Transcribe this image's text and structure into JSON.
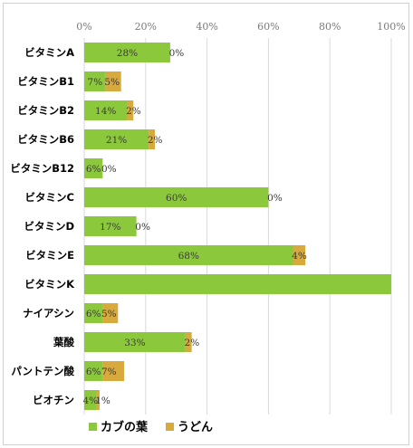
{
  "chart_data": {
    "type": "bar",
    "orientation": "horizontal",
    "stacked": true,
    "categories": [
      "ビタミンA",
      "ビタミンB1",
      "ビタミンB2",
      "ビタミンB6",
      "ビタミンB12",
      "ビタミンC",
      "ビタミンD",
      "ビタミンE",
      "ビタミンK",
      "ナイアシン",
      "葉酸",
      "パントテン酸",
      "ビオチン"
    ],
    "series": [
      {
        "name": "カブの葉",
        "color": "#8cc83c",
        "values": [
          28,
          7,
          14,
          21,
          6,
          60,
          17,
          68,
          100,
          6,
          33,
          6,
          4
        ],
        "labels": [
          "28%",
          "7%",
          "14%",
          "21%",
          "6%",
          "60%",
          "17%",
          "68%",
          "",
          "6%",
          "33%",
          "6%",
          "4%"
        ]
      },
      {
        "name": "うどん",
        "color": "#d8a93c",
        "values": [
          0,
          5,
          2,
          2,
          0,
          0,
          0,
          4,
          0,
          5,
          2,
          7,
          1
        ],
        "labels": [
          "0%",
          "5%",
          "2%",
          "2%",
          "0%",
          "0%",
          "0%",
          "4%",
          "",
          "5%",
          "2%",
          "7%",
          "1%"
        ]
      }
    ],
    "xlim": [
      0,
      100
    ],
    "xticks": [
      "0%",
      "20%",
      "40%",
      "60%",
      "80%",
      "100%"
    ],
    "grid": true,
    "legend_position": "bottom"
  }
}
